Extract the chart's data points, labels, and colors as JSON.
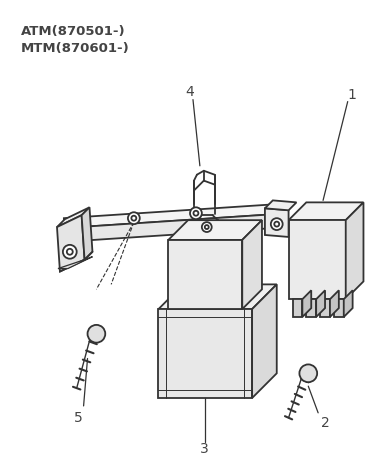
{
  "title_lines": [
    "ATM(870501-)",
    "MTM(870601-)"
  ],
  "bg_color": "#ffffff",
  "line_color": "#333333",
  "label_color": "#555555",
  "lw": 1.3,
  "fig_w": 3.83,
  "fig_h": 4.66,
  "dpi": 100
}
